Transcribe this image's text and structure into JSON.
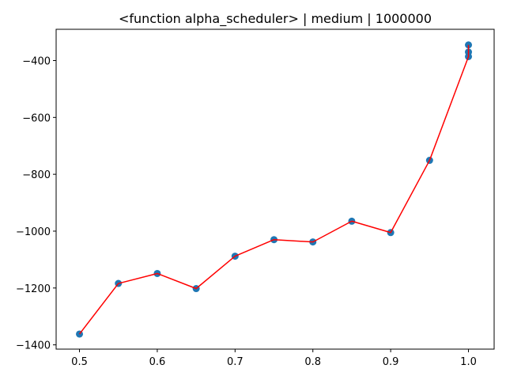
{
  "chart_data": {
    "type": "scatter",
    "title": "<function alpha_scheduler> | medium | 1000000",
    "xlabel": "",
    "ylabel": "",
    "xlim": [
      0.47,
      1.033
    ],
    "ylim": [
      -1415,
      -290
    ],
    "xticks": [
      0.5,
      0.6,
      0.7,
      0.8,
      0.9,
      1.0
    ],
    "xtick_labels": [
      "0.5",
      "0.6",
      "0.7",
      "0.8",
      "0.9",
      "1.0"
    ],
    "yticks": [
      -1400,
      -1200,
      -1000,
      -800,
      -600,
      -400
    ],
    "ytick_labels": [
      "−1400",
      "−1200",
      "−1000",
      "−800",
      "−600",
      "−400"
    ],
    "grid": false,
    "points": {
      "name": "",
      "color": "#1f77b4",
      "x": [
        0.5,
        0.55,
        0.6,
        0.65,
        0.7,
        0.75,
        0.8,
        0.85,
        0.9,
        0.95,
        1.0,
        1.0,
        1.0
      ],
      "y": [
        -1362,
        -1184,
        -1149,
        -1202,
        -1088,
        -1030,
        -1038,
        -965,
        -1005,
        -751,
        -386,
        -370,
        -345
      ]
    },
    "line": {
      "name": "",
      "color": "#ff0000",
      "x": [
        0.5,
        0.55,
        0.6,
        0.65,
        0.7,
        0.75,
        0.8,
        0.85,
        0.9,
        0.95,
        1.0,
        1.0
      ],
      "y": [
        -1362,
        -1184,
        -1149,
        -1202,
        -1088,
        -1030,
        -1038,
        -965,
        -1005,
        -751,
        -386,
        -345
      ]
    }
  }
}
